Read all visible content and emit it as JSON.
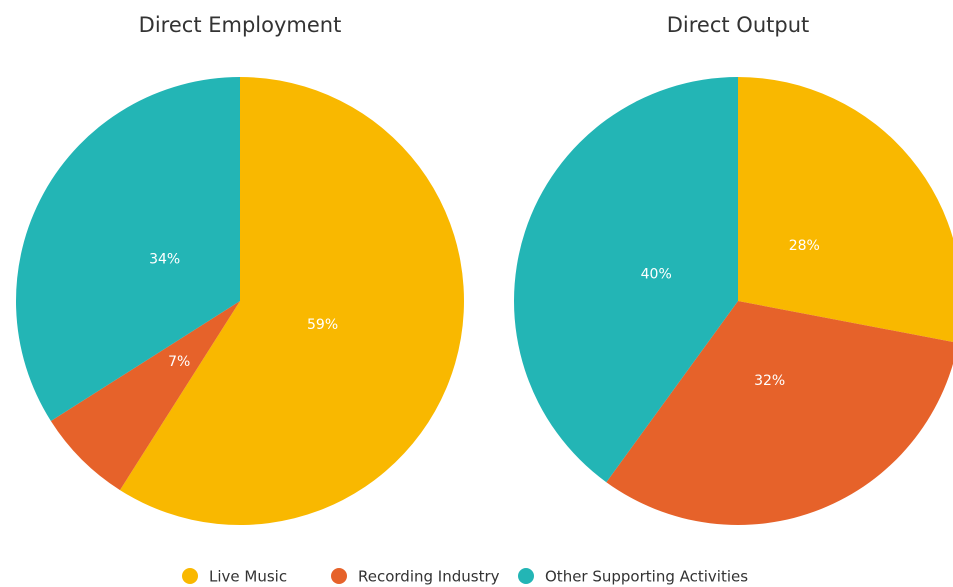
{
  "chart_data": [
    {
      "type": "pie",
      "title": "Direct Employment",
      "categories": [
        "Live Music",
        "Recording Industry",
        "Other Supporting Activities"
      ],
      "values": [
        59,
        7,
        34
      ],
      "value_labels": [
        "59%",
        "7%",
        "34%"
      ],
      "colors": [
        "#f9b800",
        "#e6622a",
        "#23b5b5"
      ]
    },
    {
      "type": "pie",
      "title": "Direct Output",
      "categories": [
        "Live Music",
        "Recording Industry",
        "Other Supporting Activities"
      ],
      "values": [
        28,
        32,
        40
      ],
      "value_labels": [
        "28%",
        "32%",
        "40%"
      ],
      "colors": [
        "#f9b800",
        "#e6622a",
        "#23b5b5"
      ]
    }
  ]
}
